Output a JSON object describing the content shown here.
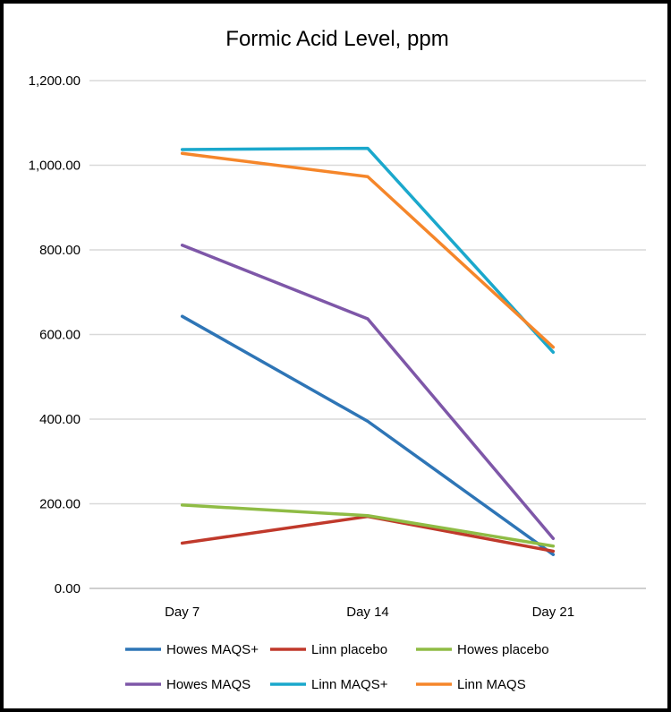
{
  "chart_data": {
    "type": "line",
    "title": "Formic Acid Level, ppm",
    "xlabel": "",
    "ylabel": "",
    "categories": [
      "Day 7",
      "Day 14",
      "Day 21"
    ],
    "y_ticks": [
      "0.00",
      "200.00",
      "400.00",
      "600.00",
      "800.00",
      "1,000.00",
      "1,200.00"
    ],
    "ylim": [
      0,
      1200
    ],
    "grid": true,
    "legend_position": "bottom",
    "series": [
      {
        "name": "Howes MAQS+",
        "color": "#2e75b6",
        "values": [
          643,
          395,
          80
        ]
      },
      {
        "name": "Linn placebo",
        "color": "#c0392b",
        "values": [
          107,
          170,
          88
        ]
      },
      {
        "name": "Howes placebo",
        "color": "#8fbc45",
        "values": [
          197,
          172,
          100
        ]
      },
      {
        "name": "Howes MAQS",
        "color": "#7e57a8",
        "values": [
          811,
          637,
          118
        ]
      },
      {
        "name": "Linn MAQS+",
        "color": "#1ba8cc",
        "values": [
          1037,
          1040,
          558
        ]
      },
      {
        "name": "Linn MAQS",
        "color": "#f5862a",
        "values": [
          1028,
          973,
          570
        ]
      }
    ]
  }
}
